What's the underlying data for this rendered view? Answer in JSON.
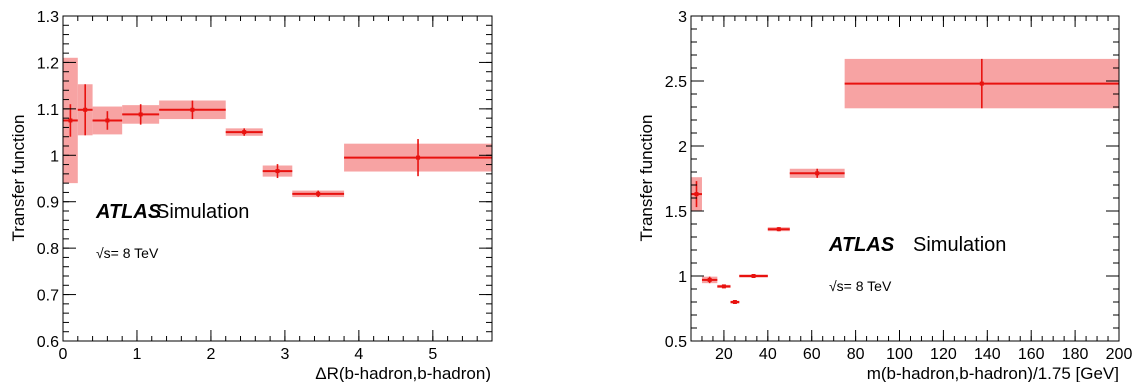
{
  "chart_data": [
    {
      "type": "scatter",
      "xlabel": "ΔR(b-hadron,b-hadron)",
      "ylabel": "Transfer function",
      "xlim": [
        0,
        5.8
      ],
      "ylim": [
        0.6,
        1.3
      ],
      "xticks": [
        "0",
        "1",
        "2",
        "3",
        "4",
        "5"
      ],
      "xtick_values": [
        0,
        1,
        2,
        3,
        4,
        5
      ],
      "yticks": [
        "0.6",
        "0.7",
        "0.8",
        "0.9",
        "1",
        "1.1",
        "1.2",
        "1.3"
      ],
      "ytick_values": [
        0.6,
        0.7,
        0.8,
        0.9,
        1.0,
        1.1,
        1.2,
        1.3
      ],
      "atlas_label": "ATLAS",
      "sim_label": "Simulation",
      "energy_label": "√s= 8 TeV",
      "band_color": "#f7a3a3",
      "marker_color": "#e8120f",
      "points": [
        {
          "xlo": 0.0,
          "xhi": 0.2,
          "y": 1.075,
          "stat": 0.035,
          "syst": 0.135
        },
        {
          "xlo": 0.2,
          "xhi": 0.4,
          "y": 1.098,
          "stat": 0.055,
          "syst": 0.055
        },
        {
          "xlo": 0.4,
          "xhi": 0.8,
          "y": 1.075,
          "stat": 0.02,
          "syst": 0.03
        },
        {
          "xlo": 0.8,
          "xhi": 1.3,
          "y": 1.088,
          "stat": 0.022,
          "syst": 0.02
        },
        {
          "xlo": 1.3,
          "xhi": 2.2,
          "y": 1.098,
          "stat": 0.02,
          "syst": 0.02
        },
        {
          "xlo": 2.2,
          "xhi": 2.7,
          "y": 1.05,
          "stat": 0.008,
          "syst": 0.008
        },
        {
          "xlo": 2.7,
          "xhi": 3.1,
          "y": 0.966,
          "stat": 0.015,
          "syst": 0.012
        },
        {
          "xlo": 3.1,
          "xhi": 3.8,
          "y": 0.917,
          "stat": 0.007,
          "syst": 0.007
        },
        {
          "xlo": 3.8,
          "xhi": 5.8,
          "y": 0.995,
          "stat": 0.04,
          "syst": 0.03
        }
      ]
    },
    {
      "type": "scatter",
      "xlabel": "m(b-hadron,b-hadron)/1.75 [GeV]",
      "ylabel": "Transfer function",
      "xlim": [
        5,
        200
      ],
      "ylim": [
        0.5,
        3
      ],
      "xticks": [
        "20",
        "40",
        "60",
        "80",
        "100",
        "120",
        "140",
        "160",
        "180",
        "200"
      ],
      "xtick_values": [
        20,
        40,
        60,
        80,
        100,
        120,
        140,
        160,
        180,
        200
      ],
      "yticks": [
        "0.5",
        "1",
        "1.5",
        "2",
        "2.5",
        "3"
      ],
      "ytick_values": [
        0.5,
        1.0,
        1.5,
        2.0,
        2.5,
        3.0
      ],
      "atlas_label": "ATLAS",
      "sim_label": "Simulation",
      "energy_label": "√s= 8 TeV",
      "band_color": "#f7a3a3",
      "marker_color": "#e8120f",
      "points": [
        {
          "xlo": 5,
          "xhi": 10,
          "y": 1.63,
          "stat": 0.1,
          "syst": 0.13
        },
        {
          "xlo": 10,
          "xhi": 17,
          "y": 0.97,
          "stat": 0.025,
          "syst": 0.025
        },
        {
          "xlo": 17,
          "xhi": 23,
          "y": 0.92,
          "stat": 0.012,
          "syst": 0.012
        },
        {
          "xlo": 23,
          "xhi": 27,
          "y": 0.8,
          "stat": 0.01,
          "syst": 0.01
        },
        {
          "xlo": 27,
          "xhi": 40,
          "y": 1.0,
          "stat": 0.012,
          "syst": 0.012
        },
        {
          "xlo": 40,
          "xhi": 50,
          "y": 1.36,
          "stat": 0.015,
          "syst": 0.015
        },
        {
          "xlo": 50,
          "xhi": 75,
          "y": 1.79,
          "stat": 0.035,
          "syst": 0.035
        },
        {
          "xlo": 75,
          "xhi": 200,
          "y": 2.48,
          "stat": 0.19,
          "syst": 0.19
        }
      ]
    }
  ]
}
